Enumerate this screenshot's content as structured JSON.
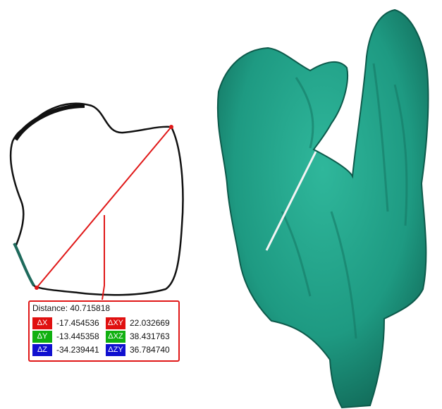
{
  "measurement": {
    "distance_label": "Distance: 40.715818",
    "rows": [
      {
        "left": {
          "label": "ΔX",
          "value": "-17.454536",
          "color": "#e01010"
        },
        "right": {
          "label": "ΔXY",
          "value": "22.032669",
          "color": "#e01010"
        }
      },
      {
        "left": {
          "label": "ΔY",
          "value": "-13.445358",
          "color": "#10b010"
        },
        "right": {
          "label": "ΔXZ",
          "value": "38.431763",
          "color": "#10b010"
        }
      },
      {
        "left": {
          "label": "ΔZ",
          "value": "-34.239441",
          "color": "#1010d0"
        },
        "right": {
          "label": "ΔZY",
          "value": "36.784740",
          "color": "#1010d0"
        }
      }
    ]
  },
  "colors": {
    "mesh": "#1e9a82",
    "measure_line": "#e01818",
    "outline": "#111111",
    "cut_line": "#f4f4f4"
  },
  "icons": [
    "measure-endpoint-icon"
  ]
}
